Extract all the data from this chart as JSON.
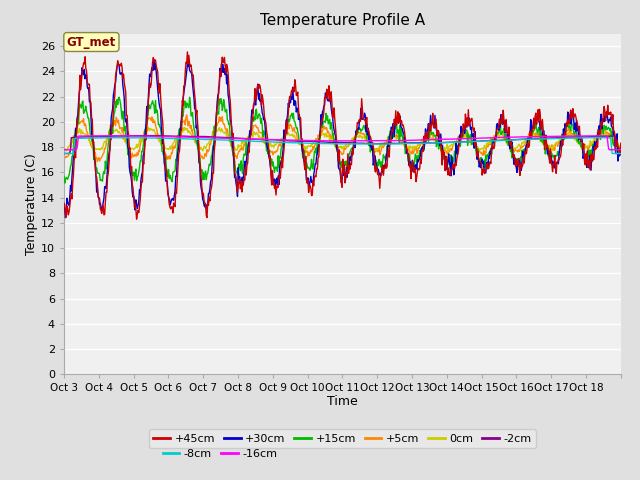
{
  "title": "Temperature Profile A",
  "xlabel": "Time",
  "ylabel": "Temperature (C)",
  "ylim": [
    0,
    27
  ],
  "yticks": [
    0,
    2,
    4,
    6,
    8,
    10,
    12,
    14,
    16,
    18,
    20,
    22,
    24,
    26
  ],
  "x_labels": [
    "Oct 3",
    "Oct 4",
    "Oct 5",
    "Oct 6",
    "Oct 7",
    "Oct 8",
    "Oct 9",
    "Oct 10",
    "Oct 11",
    "Oct 12",
    "Oct 13",
    "Oct 14",
    "Oct 15",
    "Oct 16",
    "Oct 17",
    "Oct 18",
    ""
  ],
  "n_days": 16,
  "fig_bg_color": "#e0e0e0",
  "axes_bg_color": "#f0f0f0",
  "grid_color": "#ffffff",
  "series": [
    {
      "label": "+45cm",
      "color": "#cc0000",
      "lw": 1.0,
      "zorder": 5
    },
    {
      "label": "+30cm",
      "color": "#0000cc",
      "lw": 1.0,
      "zorder": 4
    },
    {
      "label": "+15cm",
      "color": "#00bb00",
      "lw": 1.0,
      "zorder": 3
    },
    {
      "label": "+5cm",
      "color": "#ff8800",
      "lw": 1.0,
      "zorder": 2
    },
    {
      "label": "0cm",
      "color": "#cccc00",
      "lw": 1.0,
      "zorder": 2
    },
    {
      "label": "-2cm",
      "color": "#880088",
      "lw": 1.0,
      "zorder": 6
    },
    {
      "label": "-8cm",
      "color": "#00cccc",
      "lw": 1.0,
      "zorder": 6
    },
    {
      "label": "-16cm",
      "color": "#ff00ff",
      "lw": 1.0,
      "zorder": 6
    }
  ],
  "annotation_text": "GT_met",
  "annotation_color": "#880000",
  "annotation_bg": "#ffffbb",
  "annotation_border": "#888844",
  "legend_row1": [
    "+45cm",
    "+30cm",
    "+15cm",
    "+5cm",
    "0cm",
    "-2cm"
  ],
  "legend_row2": [
    "-8cm",
    "-16cm"
  ]
}
